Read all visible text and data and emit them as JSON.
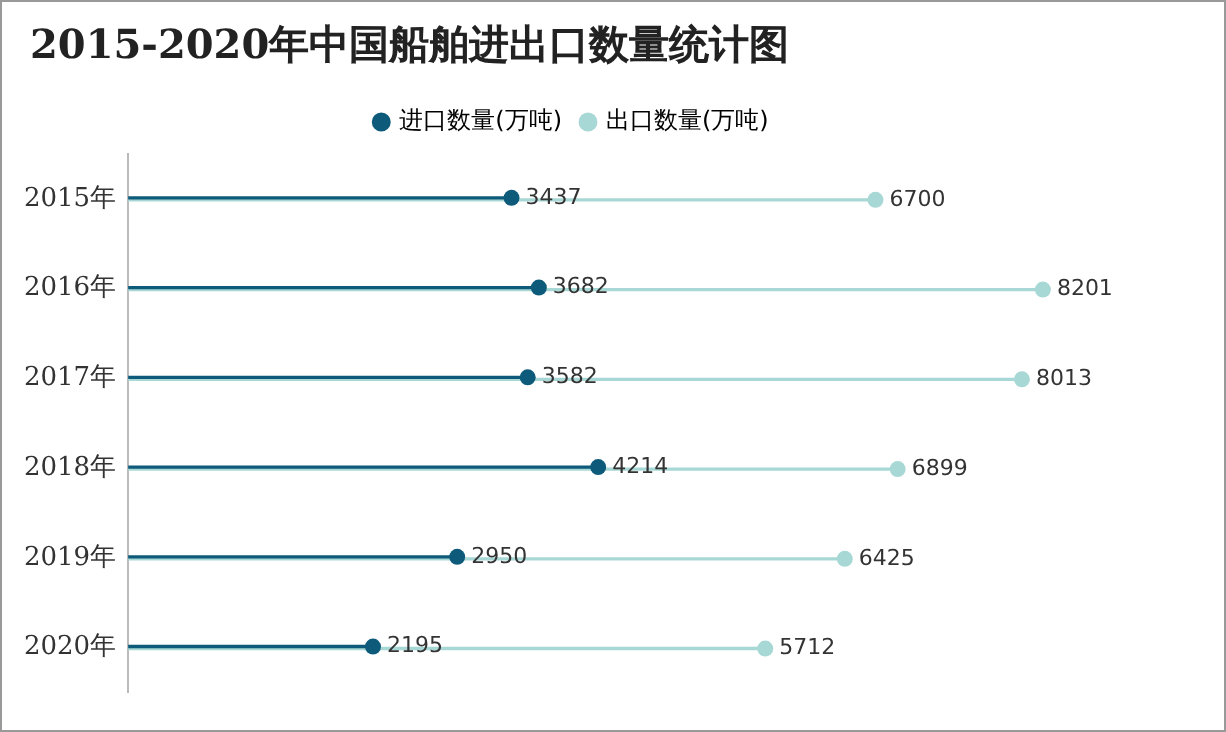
{
  "chart_data": {
    "type": "lollipop",
    "orientation": "horizontal",
    "title": "2015-2020年中国船舶进出口数量统计图",
    "categories": [
      "2015年",
      "2016年",
      "2017年",
      "2018年",
      "2019年",
      "2020年"
    ],
    "series": [
      {
        "name": "进口数量(万吨)",
        "color": "#0e5a7a",
        "values": [
          3437,
          3682,
          3582,
          4214,
          2950,
          2195
        ]
      },
      {
        "name": "出口数量(万吨)",
        "color": "#a8d8d5",
        "values": [
          6700,
          8201,
          8013,
          6899,
          6425,
          5712
        ]
      }
    ],
    "data_labels": true,
    "legend": "top",
    "grid": false
  }
}
